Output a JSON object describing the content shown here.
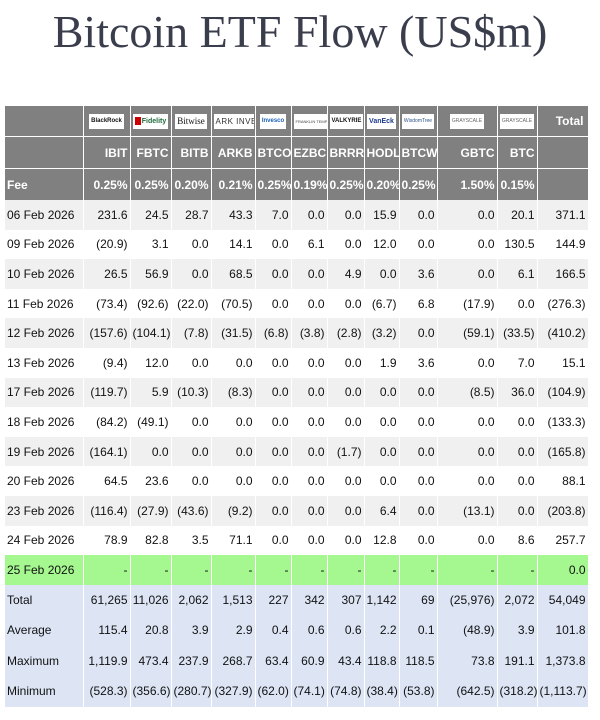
{
  "title": "Bitcoin ETF Flow (US$m)",
  "colors": {
    "header_bg": "#808080",
    "row_shaded": "#f0f0f0",
    "row_current": "#a5f78f",
    "summary_bg": "#dde5f5",
    "negative": "#e01e1e",
    "title": "#3a3d4c"
  },
  "header": {
    "logos": [
      "BlackRock",
      "Fidelity",
      "Bitwise",
      "ARK INVEST",
      "Invesco",
      "FRANKLIN TEMPLETON",
      "VALKYRIE",
      "VanEck",
      "WisdomTree",
      "GRAYSCALE",
      "GRAYSCALE"
    ],
    "total_label": "Total",
    "tickers": [
      "IBIT",
      "FBTC",
      "BITB",
      "ARKB",
      "BTCO",
      "EZBC",
      "BRRR",
      "HODL",
      "BTCW",
      "GBTC",
      "BTC"
    ],
    "fee_label": "Fee",
    "fees": [
      "0.25%",
      "0.25%",
      "0.20%",
      "0.21%",
      "0.25%",
      "0.19%",
      "0.25%",
      "0.20%",
      "0.25%",
      "1.50%",
      "0.15%"
    ]
  },
  "rows": [
    {
      "date": "06 Feb 2026",
      "values": [
        "231.6",
        "24.5",
        "28.7",
        "43.3",
        "7.0",
        "0.0",
        "0.0",
        "15.9",
        "0.0",
        "0.0",
        "20.1"
      ],
      "total": "371.1"
    },
    {
      "date": "09 Feb 2026",
      "values": [
        "(20.9)",
        "3.1",
        "0.0",
        "14.1",
        "0.0",
        "6.1",
        "0.0",
        "12.0",
        "0.0",
        "0.0",
        "130.5"
      ],
      "total": "144.9"
    },
    {
      "date": "10 Feb 2026",
      "values": [
        "26.5",
        "56.9",
        "0.0",
        "68.5",
        "0.0",
        "0.0",
        "4.9",
        "0.0",
        "3.6",
        "0.0",
        "6.1"
      ],
      "total": "166.5"
    },
    {
      "date": "11 Feb 2026",
      "values": [
        "(73.4)",
        "(92.6)",
        "(22.0)",
        "(70.5)",
        "0.0",
        "0.0",
        "0.0",
        "(6.7)",
        "6.8",
        "(17.9)",
        "0.0"
      ],
      "total": "(276.3)"
    },
    {
      "date": "12 Feb 2026",
      "values": [
        "(157.6)",
        "(104.1)",
        "(7.8)",
        "(31.5)",
        "(6.8)",
        "(3.8)",
        "(2.8)",
        "(3.2)",
        "0.0",
        "(59.1)",
        "(33.5)"
      ],
      "total": "(410.2)"
    },
    {
      "date": "13 Feb 2026",
      "values": [
        "(9.4)",
        "12.0",
        "0.0",
        "0.0",
        "0.0",
        "0.0",
        "0.0",
        "1.9",
        "3.6",
        "0.0",
        "7.0"
      ],
      "total": "15.1"
    },
    {
      "date": "17 Feb 2026",
      "values": [
        "(119.7)",
        "5.9",
        "(10.3)",
        "(8.3)",
        "0.0",
        "0.0",
        "0.0",
        "0.0",
        "0.0",
        "(8.5)",
        "36.0"
      ],
      "total": "(104.9)"
    },
    {
      "date": "18 Feb 2026",
      "values": [
        "(84.2)",
        "(49.1)",
        "0.0",
        "0.0",
        "0.0",
        "0.0",
        "0.0",
        "0.0",
        "0.0",
        "0.0",
        "0.0"
      ],
      "total": "(133.3)"
    },
    {
      "date": "19 Feb 2026",
      "values": [
        "(164.1)",
        "0.0",
        "0.0",
        "0.0",
        "0.0",
        "0.0",
        "(1.7)",
        "0.0",
        "0.0",
        "0.0",
        "0.0"
      ],
      "total": "(165.8)"
    },
    {
      "date": "20 Feb 2026",
      "values": [
        "64.5",
        "23.6",
        "0.0",
        "0.0",
        "0.0",
        "0.0",
        "0.0",
        "0.0",
        "0.0",
        "0.0",
        "0.0"
      ],
      "total": "88.1"
    },
    {
      "date": "23 Feb 2026",
      "values": [
        "(116.4)",
        "(27.9)",
        "(43.6)",
        "(9.2)",
        "0.0",
        "0.0",
        "0.0",
        "6.4",
        "0.0",
        "(13.1)",
        "0.0"
      ],
      "total": "(203.8)"
    },
    {
      "date": "24 Feb 2026",
      "values": [
        "78.9",
        "82.8",
        "3.5",
        "71.1",
        "0.0",
        "0.0",
        "0.0",
        "12.8",
        "0.0",
        "0.0",
        "8.6"
      ],
      "total": "257.7"
    },
    {
      "date": "25 Feb 2026",
      "values": [
        "-",
        "-",
        "-",
        "-",
        "-",
        "-",
        "-",
        "-",
        "-",
        "-",
        "-"
      ],
      "total": "0.0",
      "current": true
    }
  ],
  "summary": [
    {
      "label": "Total",
      "values": [
        "61,265",
        "11,026",
        "2,062",
        "1,513",
        "227",
        "342",
        "307",
        "1,142",
        "69",
        "(25,976)",
        "2,072"
      ],
      "total": "54,049"
    },
    {
      "label": "Average",
      "values": [
        "115.4",
        "20.8",
        "3.9",
        "2.9",
        "0.4",
        "0.6",
        "0.6",
        "2.2",
        "0.1",
        "(48.9)",
        "3.9"
      ],
      "total": "101.8"
    },
    {
      "label": "Maximum",
      "values": [
        "1,119.9",
        "473.4",
        "237.9",
        "268.7",
        "63.4",
        "60.9",
        "43.4",
        "118.8",
        "118.5",
        "73.8",
        "191.1"
      ],
      "total": "1,373.8"
    },
    {
      "label": "Minimum",
      "values": [
        "(528.3)",
        "(356.6)",
        "(280.7)",
        "(327.9)",
        "(62.0)",
        "(74.1)",
        "(74.8)",
        "(38.4)",
        "(53.8)",
        "(642.5)",
        "(318.2)"
      ],
      "total": "(1,113.7)"
    }
  ]
}
